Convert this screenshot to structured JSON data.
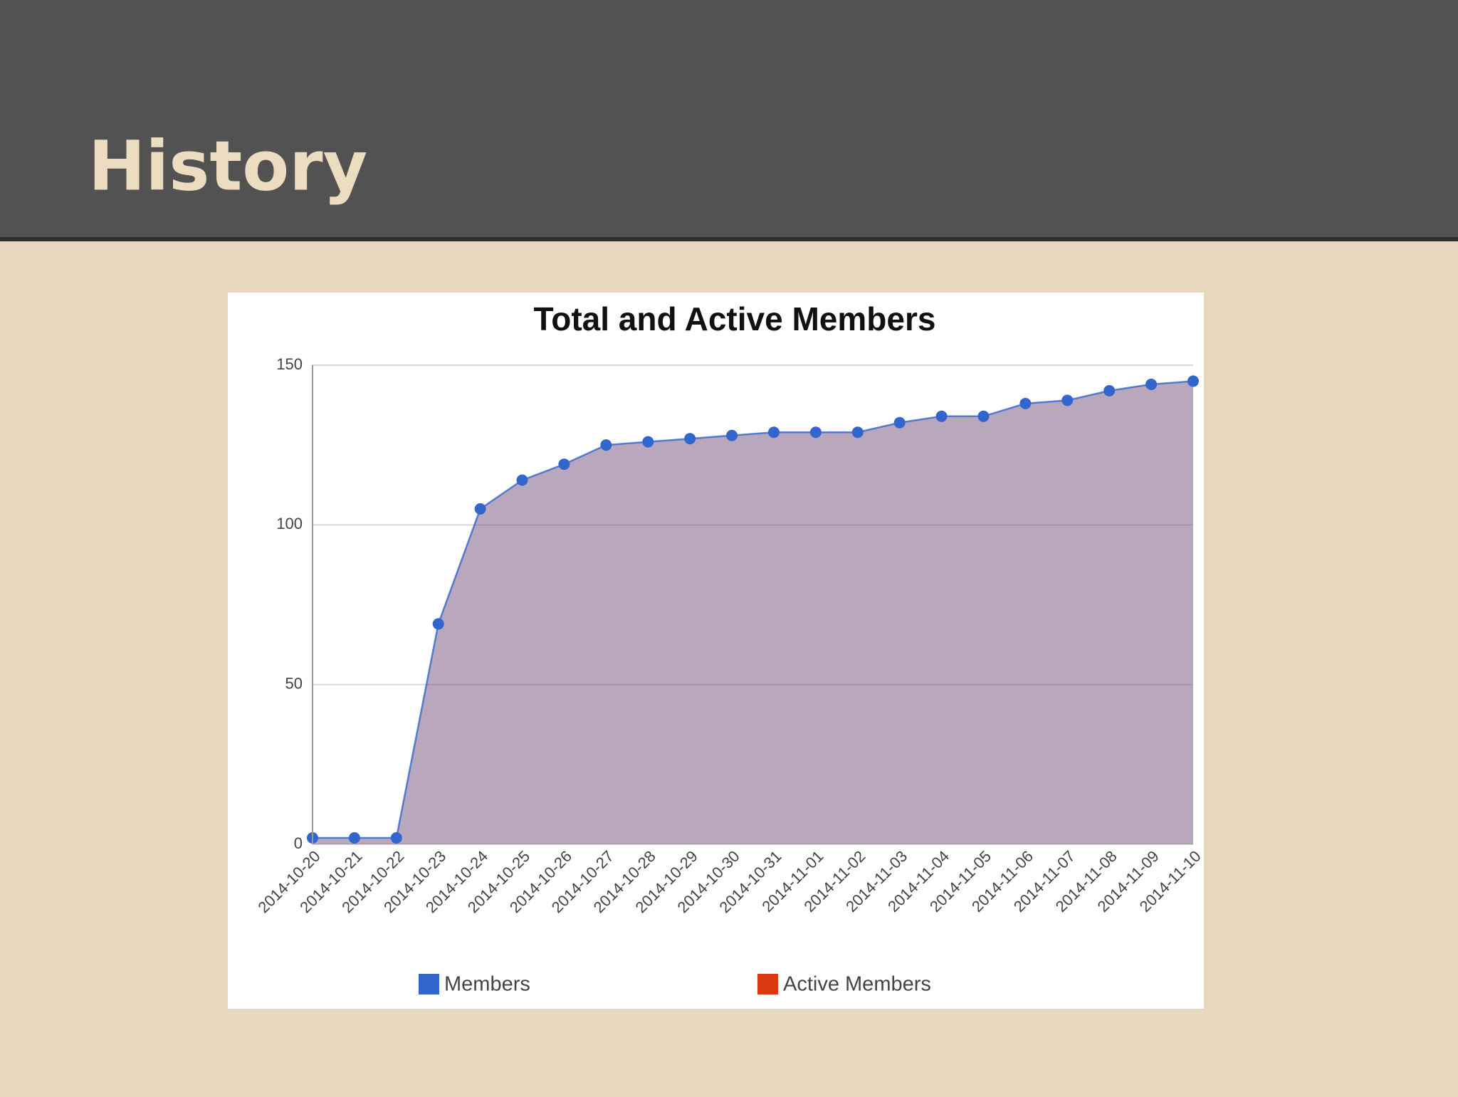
{
  "header": {
    "title": "History"
  },
  "chart_data": {
    "type": "area",
    "title": "Total and Active Members",
    "categories": [
      "2014-10-20",
      "2014-10-21",
      "2014-10-22",
      "2014-10-23",
      "2014-10-24",
      "2014-10-25",
      "2014-10-26",
      "2014-10-27",
      "2014-10-28",
      "2014-10-29",
      "2014-10-30",
      "2014-10-31",
      "2014-11-01",
      "2014-11-02",
      "2014-11-03",
      "2014-11-04",
      "2014-11-05",
      "2014-11-06",
      "2014-11-07",
      "2014-11-08",
      "2014-11-09",
      "2014-11-10"
    ],
    "series": [
      {
        "name": "Members",
        "color": "#3366cc",
        "values": [
          2,
          2,
          2,
          69,
          105,
          114,
          119,
          125,
          126,
          127,
          128,
          129,
          129,
          129,
          132,
          134,
          134,
          138,
          139,
          142,
          144,
          145
        ]
      },
      {
        "name": "Active Members",
        "color": "#dc3912",
        "values": [
          2,
          2,
          2,
          69,
          105,
          114,
          119,
          125,
          126,
          127,
          128,
          129,
          129,
          129,
          132,
          134,
          134,
          138,
          139,
          142,
          144,
          145
        ]
      }
    ],
    "ylim": [
      0,
      150
    ],
    "yticks": [
      0,
      50,
      100,
      150
    ],
    "grid": true,
    "legend": "bottom"
  }
}
